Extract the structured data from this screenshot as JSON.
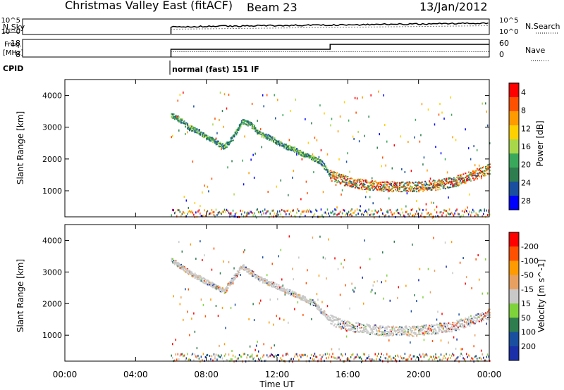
{
  "header": {
    "station": "Christmas Valley East (fitACF)",
    "beam": "Beam 23",
    "date": "13/Jan/2012"
  },
  "nsky_panel": {
    "left_label": "N.Sky",
    "left_ticks": [
      "10^5",
      "10^0"
    ],
    "right_ticks": [
      "10^5",
      "10^0"
    ],
    "right_label": "N.Search"
  },
  "freq_panel": {
    "left_label_1": "Freq.",
    "left_label_2": "[MHz]",
    "left_ticks": [
      "18",
      "8"
    ],
    "right_ticks": [
      "60",
      "0"
    ],
    "right_label": "Nave"
  },
  "cpid": {
    "label": "CPID",
    "mode": "normal (fast) 151 IF"
  },
  "colors": {
    "power": [
      "#0000ff",
      "#1a4fa0",
      "#2e7d4f",
      "#3aa85a",
      "#a8d84a",
      "#ffd000",
      "#ff9a00",
      "#ff5000",
      "#ff0000"
    ],
    "velocity": [
      "#1a2fa8",
      "#1a4fa0",
      "#2e7d4f",
      "#7fd33a",
      "#c8c8c8",
      "#e8a060",
      "#ff9a00",
      "#ff5000",
      "#ff0000"
    ]
  },
  "chart_data": [
    {
      "type": "heatmap",
      "title": "",
      "xlabel": "",
      "ylabel": "Slant Range [km]",
      "x_ticks": [
        "00:00",
        "04:00",
        "08:00",
        "12:00",
        "16:00",
        "20:00",
        "00:00"
      ],
      "y_ticks": [
        1000,
        2000,
        3000,
        4000
      ],
      "xlim_hours": [
        0,
        24
      ],
      "ylim_km": [
        180,
        4500
      ],
      "colorbar": {
        "label": "Power [dB]",
        "ticks": [
          4,
          8,
          12,
          16,
          20,
          24,
          28
        ]
      },
      "data_start_hour": 6,
      "series": [
        {
          "name": "",
          "x_hours": [
            6.0,
            6.5,
            7.0,
            7.5,
            8.0,
            8.5,
            9.0,
            9.5,
            10.0,
            10.5,
            11.0,
            11.5,
            12.0,
            12.5,
            13.0,
            13.5,
            14.0,
            14.5,
            15.0
          ],
          "range_km": [
            3400,
            3250,
            3000,
            2900,
            2700,
            2550,
            2400,
            2700,
            3200,
            3100,
            2800,
            2700,
            2550,
            2400,
            2300,
            2150,
            2050,
            1900,
            1500
          ]
        },
        {
          "name": "",
          "x_hours": [
            15.0,
            16.0,
            17.0,
            18.0,
            19.0,
            20.0,
            21.0,
            22.0,
            23.0,
            24.0
          ],
          "range_km": [
            1500,
            1300,
            1200,
            1150,
            1150,
            1150,
            1200,
            1300,
            1500,
            1700
          ]
        }
      ]
    },
    {
      "type": "heatmap",
      "title": "",
      "xlabel": "Time UT",
      "ylabel": "Slant Range [km]",
      "x_ticks": [
        "00:00",
        "04:00",
        "08:00",
        "12:00",
        "16:00",
        "20:00",
        "00:00"
      ],
      "y_ticks": [
        1000,
        2000,
        3000,
        4000
      ],
      "xlim_hours": [
        0,
        24
      ],
      "ylim_km": [
        180,
        4500
      ],
      "colorbar": {
        "label": "Velocity [m s^-1]",
        "ticks": [
          200,
          100,
          50,
          15,
          -15,
          -50,
          -100,
          -200
        ]
      },
      "data_start_hour": 6,
      "series": [
        {
          "name": "",
          "x_hours": [
            6.0,
            7.0,
            8.0,
            9.0,
            10.0,
            11.0,
            12.0,
            13.0,
            14.0,
            15.0
          ],
          "range_km": [
            3400,
            3000,
            2700,
            2400,
            3200,
            2800,
            2550,
            2300,
            2050,
            1500
          ]
        },
        {
          "name": "",
          "x_hours": [
            15.0,
            16.0,
            18.0,
            20.0,
            22.0,
            24.0
          ],
          "range_km": [
            1500,
            1300,
            1150,
            1150,
            1300,
            1700
          ]
        }
      ]
    }
  ]
}
